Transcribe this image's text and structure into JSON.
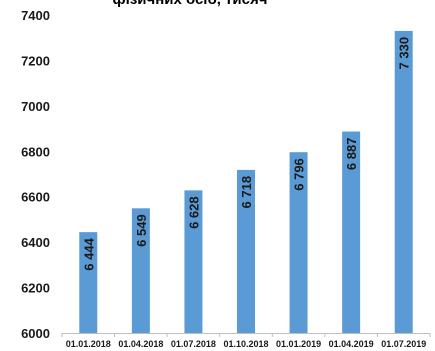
{
  "chart_data": {
    "type": "bar",
    "title": "фізичних осіб, тисяч",
    "categories": [
      "01.01.2018",
      "01.04.2018",
      "01.07.2018",
      "01.10.2018",
      "01.01.2019",
      "01.04.2019",
      "01.07.2019"
    ],
    "values": [
      6444,
      6549,
      6628,
      6718,
      6796,
      6887,
      7330
    ],
    "data_labels": [
      "6 444",
      "6 549",
      "6 628",
      "6 718",
      "6 796",
      "6 887",
      "7 330"
    ],
    "ylim": [
      6000,
      7400
    ],
    "yticks": [
      6000,
      6200,
      6400,
      6600,
      6800,
      7000,
      7200,
      7400
    ],
    "xlabel": "",
    "ylabel": "",
    "grid": false,
    "legend": "none",
    "bar_color": "#5b9bd5"
  }
}
